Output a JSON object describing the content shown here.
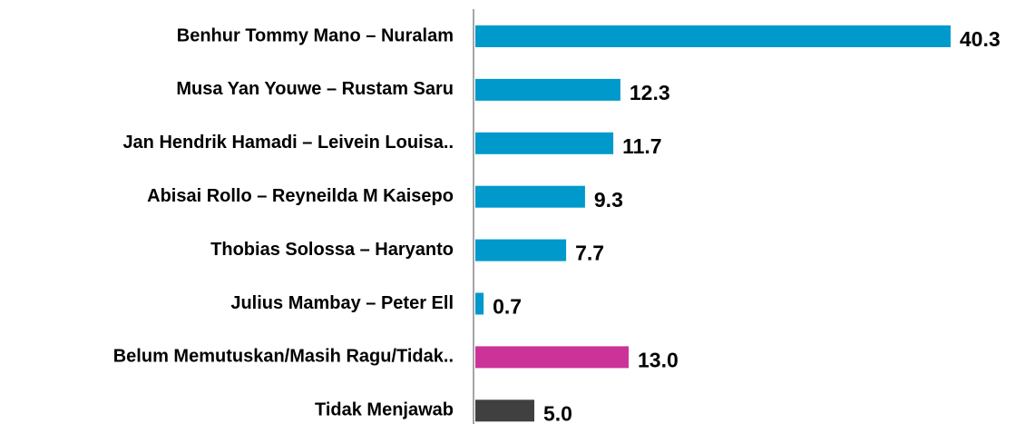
{
  "chart_data": {
    "type": "barh",
    "categories": [
      "Benhur Tommy Mano – Nuralam",
      "Musa Yan Youwe – Rustam Saru",
      "Jan Hendrik Hamadi – Leivein Louisa..",
      "Abisai Rollo – Reyneilda M Kaisepo",
      "Thobias Solossa – Haryanto",
      "Julius Mambay – Peter Ell",
      "Belum Memutuskan/Masih Ragu/Tidak..",
      "Tidak Menjawab"
    ],
    "values": [
      40.3,
      12.3,
      11.7,
      9.3,
      7.7,
      0.7,
      13,
      5
    ],
    "value_labels": [
      "40.3",
      "12.3",
      "11.7",
      "9.3",
      "7.7",
      "0.7",
      "13.0",
      "5.0"
    ],
    "colors": [
      "#0099cc",
      "#0099cc",
      "#0099cc",
      "#0099cc",
      "#0099cc",
      "#0099cc",
      "#cc3399",
      "#404040"
    ],
    "xlim": [
      0,
      42
    ]
  }
}
